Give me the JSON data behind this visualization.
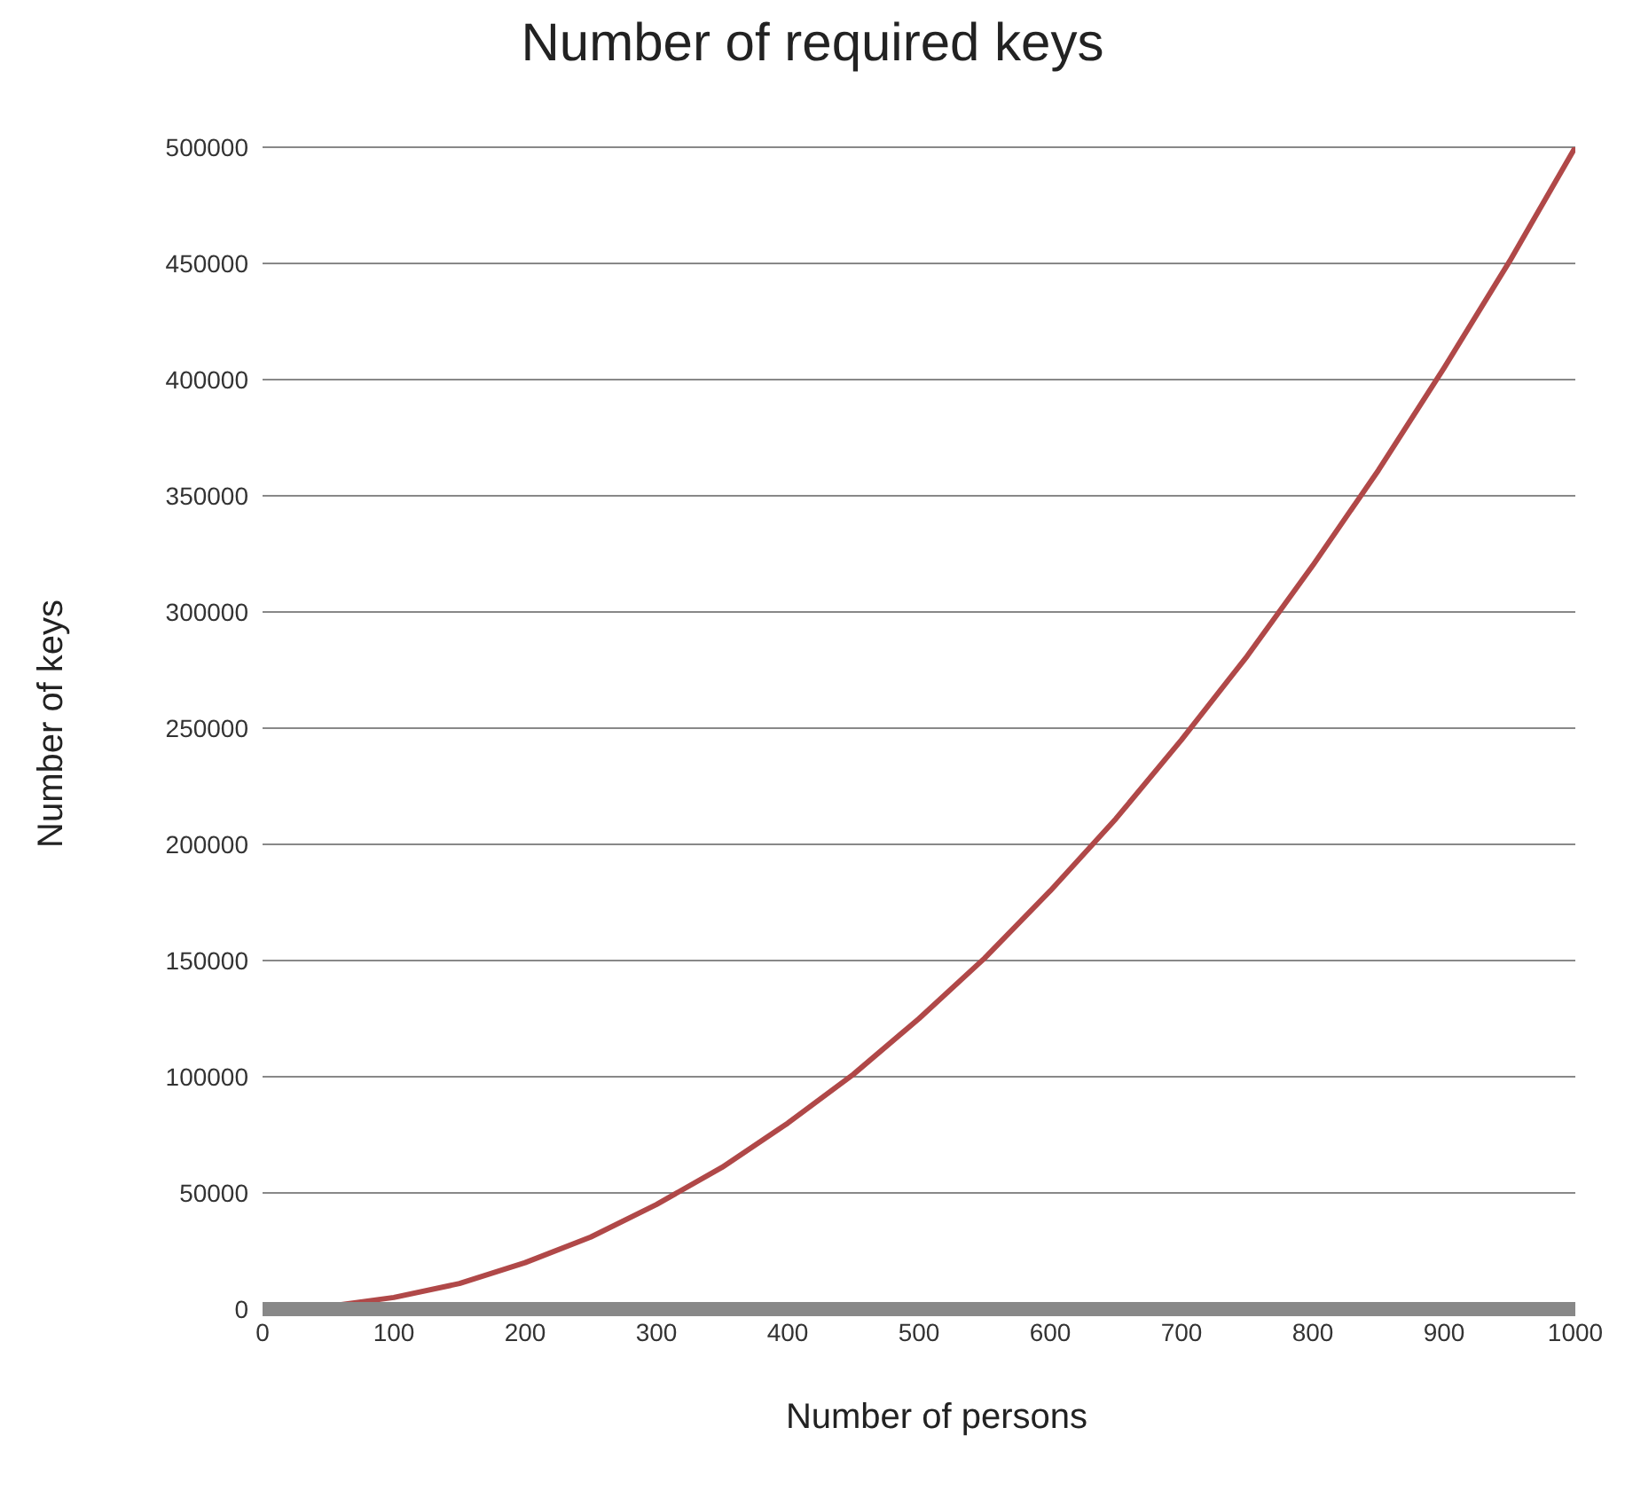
{
  "chart_data": {
    "type": "line",
    "title": "Number of required keys",
    "xlabel": "Number of persons",
    "ylabel": "Number of keys",
    "x": [
      0,
      50,
      100,
      150,
      200,
      250,
      300,
      350,
      400,
      450,
      500,
      550,
      600,
      650,
      700,
      750,
      800,
      850,
      900,
      950,
      1000
    ],
    "series": [
      {
        "color": "#b04848",
        "values": [
          0,
          1200,
          5000,
          11000,
          20000,
          31000,
          45000,
          61000,
          80000,
          101000,
          125000,
          151000,
          180000,
          211000,
          245000,
          281000,
          320000,
          361000,
          405000,
          451000,
          500000
        ]
      }
    ],
    "xlim": [
      0,
      1000
    ],
    "xticks": [
      0,
      100,
      200,
      300,
      400,
      500,
      600,
      700,
      800,
      900,
      1000
    ],
    "ylim": [
      0,
      500000
    ],
    "yticks": [
      0,
      50000,
      100000,
      150000,
      200000,
      250000,
      300000,
      350000,
      400000,
      450000,
      500000
    ],
    "grid": "y",
    "legend": false,
    "marker": "none",
    "line_style": "solid"
  }
}
